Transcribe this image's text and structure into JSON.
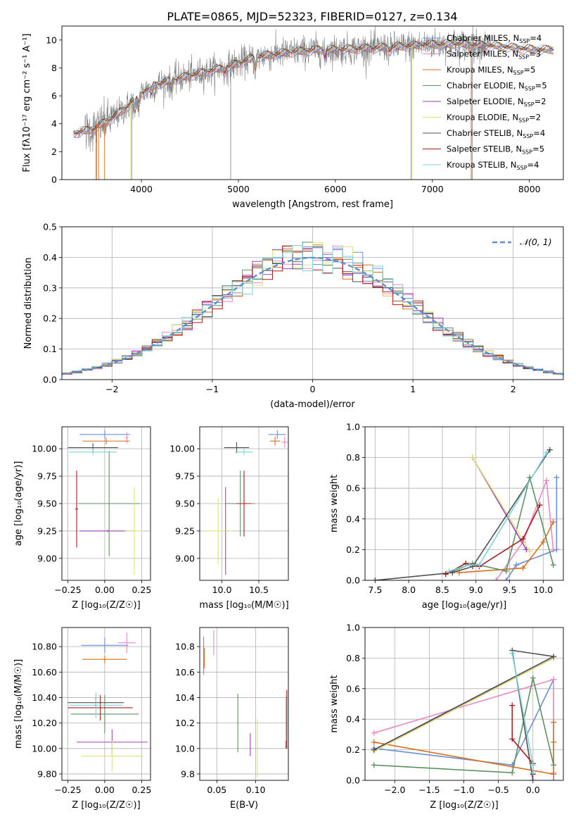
{
  "figure": {
    "title": "PLATE=0865, MJD=52323, FIBERID=0127, z=0.134"
  },
  "colors": {
    "Chabrier MILES": "#6b8fd6",
    "Salpeter MILES": "#e889c4",
    "Kroupa MILES": "#d86f1d",
    "Chabrier ELODIE": "#5e9162",
    "Salpeter ELODIE": "#9e3fbd",
    "Kroupa ELODIE": "#dbe37a",
    "Chabrier STELIB": "#505050",
    "Salpeter STELIB": "#a91d1d",
    "Kroupa STELIB": "#7fd3da",
    "data": "#808080"
  },
  "chart_data": [
    {
      "id": "spectrum",
      "type": "line",
      "title": "PLATE=0865, MJD=52323, FIBERID=0127, z=0.134",
      "xlabel": "wavelength [Angstrom, rest frame]",
      "ylabel": "Flux [fλ10⁻¹⁷ erg cm⁻² s⁻¹ A⁻¹]",
      "xlim": [
        3180,
        8350
      ],
      "ylim": [
        0,
        11
      ],
      "xticks": [
        4000,
        5000,
        6000,
        7000,
        8000
      ],
      "yticks": [
        0,
        2,
        4,
        6,
        8,
        10
      ],
      "grid": false,
      "legend": "upper-right",
      "legend_entries": [
        {
          "label": "Chabrier MILES, N",
          "sub": "SSP",
          "tail": "=4"
        },
        {
          "label": "Salpeter MILES, N",
          "sub": "SSP",
          "tail": "=3"
        },
        {
          "label": "Kroupa MILES, N",
          "sub": "SSP",
          "tail": "=5"
        },
        {
          "label": "Chabrier ELODIE, N",
          "sub": "SSP",
          "tail": "=5"
        },
        {
          "label": "Salpeter ELODIE, N",
          "sub": "SSP",
          "tail": "=2"
        },
        {
          "label": "Kroupa ELODIE, N",
          "sub": "SSP",
          "tail": "=2"
        },
        {
          "label": "Chabrier STELIB, N",
          "sub": "SSP",
          "tail": "=4"
        },
        {
          "label": "Salpeter STELIB, N",
          "sub": "SSP",
          "tail": "=5"
        },
        {
          "label": "Kroupa STELIB, N",
          "sub": "SSP",
          "tail": "=4"
        }
      ],
      "model_continuum": {
        "x": [
          3300,
          3500,
          3700,
          3850,
          4000,
          4150,
          4300,
          4600,
          4900,
          5200,
          5500,
          5800,
          6000,
          6300,
          6600,
          7000,
          7300,
          7600,
          7900,
          8100,
          8250
        ],
        "y": [
          3.3,
          3.6,
          4.4,
          5.2,
          6.2,
          6.8,
          7.1,
          7.6,
          8.1,
          8.8,
          9.1,
          9.3,
          9.3,
          9.4,
          9.5,
          9.7,
          9.7,
          9.6,
          9.4,
          9.3,
          9.3
        ]
      }
    },
    {
      "id": "residuals",
      "type": "step",
      "xlabel": "(data-model)/error",
      "ylabel": "Normed distribution",
      "xlim": [
        -2.5,
        2.5
      ],
      "ylim": [
        0,
        0.5
      ],
      "xticks": [
        -2,
        -1,
        0,
        1,
        2
      ],
      "yticks": [
        0.0,
        0.1,
        0.2,
        0.3,
        0.4,
        0.5
      ],
      "grid": true,
      "legend": "upper-right",
      "reference_label": "𝒩(0, 1)"
    },
    {
      "id": "age-vs-Z",
      "type": "errorbar",
      "xlabel": "Z [log₁₀(Z/Z☉)]",
      "ylabel": "age  [log₁₀(age/yr)]",
      "xlim": [
        -0.29,
        0.31
      ],
      "ylim": [
        8.8,
        10.2
      ],
      "xticks": [
        -0.25,
        0.0,
        0.25
      ],
      "yticks": [
        9.0,
        9.25,
        9.5,
        9.75,
        10.0
      ],
      "grid": true,
      "points": [
        {
          "model": "Chabrier MILES",
          "x": 0.0,
          "y": 10.13,
          "xerr": 0.17,
          "yerr": 0.04
        },
        {
          "model": "Salpeter MILES",
          "x": 0.15,
          "y": 10.1,
          "xerr": 0.01,
          "yerr": 0.05
        },
        {
          "model": "Kroupa MILES",
          "x": 0.01,
          "y": 10.07,
          "xerr": 0.16,
          "yerr": 0.03
        },
        {
          "model": "Chabrier ELODIE",
          "x": 0.03,
          "y": 9.5,
          "xerr": 0.21,
          "yerr": 0.48
        },
        {
          "model": "Salpeter ELODIE",
          "x": 0.02,
          "y": 9.25,
          "xerr": 0.19,
          "yerr": 0.01
        },
        {
          "model": "Kroupa ELODIE",
          "x": 0.2,
          "y": 9.25,
          "xerr": 0.06,
          "yerr": 0.4
        },
        {
          "model": "Chabrier STELIB",
          "x": -0.08,
          "y": 10.01,
          "xerr": 0.17,
          "yerr": 0.04
        },
        {
          "model": "Salpeter STELIB",
          "x": -0.19,
          "y": 9.45,
          "xerr": 0.01,
          "yerr": 0.35
        },
        {
          "model": "Kroupa STELIB",
          "x": -0.08,
          "y": 9.97,
          "xerr": 0.16,
          "yerr": 0.03
        }
      ]
    },
    {
      "id": "age-vs-mass",
      "type": "errorbar",
      "xlabel": "mass [log₁₀(M/M☉)]",
      "ylabel": "",
      "xlim": [
        9.7,
        10.9
      ],
      "ylim": [
        8.8,
        10.2
      ],
      "xticks": [
        10.0,
        10.5
      ],
      "yticks": [
        9.0,
        9.25,
        9.5,
        9.75,
        10.0
      ],
      "grid": true,
      "points": [
        {
          "model": "Chabrier MILES",
          "x": 10.75,
          "y": 10.13,
          "xerr": 0.12,
          "yerr": 0.04
        },
        {
          "model": "Salpeter MILES",
          "x": 10.85,
          "y": 10.06,
          "xerr": 0.04,
          "yerr": 0.05
        },
        {
          "model": "Kroupa MILES",
          "x": 10.72,
          "y": 10.07,
          "xerr": 0.07,
          "yerr": 0.04
        },
        {
          "model": "Chabrier ELODIE",
          "x": 10.25,
          "y": 9.5,
          "xerr": 0.2,
          "yerr": 0.3
        },
        {
          "model": "Salpeter ELODIE",
          "x": 10.05,
          "y": 9.25,
          "xerr": 0.05,
          "yerr": 0.4
        },
        {
          "model": "Kroupa ELODIE",
          "x": 9.95,
          "y": 9.25,
          "xerr": 0.2,
          "yerr": 0.3
        },
        {
          "model": "Chabrier STELIB",
          "x": 10.2,
          "y": 10.01,
          "xerr": 0.17,
          "yerr": 0.05
        },
        {
          "model": "Salpeter STELIB",
          "x": 10.3,
          "y": 9.5,
          "xerr": 0.1,
          "yerr": 0.3
        },
        {
          "model": "Kroupa STELIB",
          "x": 10.3,
          "y": 9.97,
          "xerr": 0.12,
          "yerr": 0.03
        }
      ]
    },
    {
      "id": "weight-vs-age",
      "type": "line",
      "xlabel": "age  [log₁₀(age/yr)]",
      "ylabel": "mass weight",
      "xlim": [
        7.35,
        10.3
      ],
      "ylim": [
        0,
        1.0
      ],
      "xticks": [
        7.5,
        8.0,
        8.5,
        9.0,
        9.5,
        10.0
      ],
      "yticks": [
        0.0,
        0.2,
        0.4,
        0.6,
        0.8,
        1.0
      ],
      "grid": true,
      "series": [
        {
          "model": "Chabrier MILES",
          "x": [
            9.45,
            9.6,
            10.2,
            10.2
          ],
          "y": [
            0.0,
            0.1,
            0.2,
            0.67
          ]
        },
        {
          "model": "Salpeter MILES",
          "x": [
            9.3,
            9.7,
            10.05,
            10.15
          ],
          "y": [
            0.0,
            0.25,
            0.65,
            0.2
          ]
        },
        {
          "model": "Kroupa MILES",
          "x": [
            8.75,
            9.7,
            10.0,
            10.15
          ],
          "y": [
            0.05,
            0.08,
            0.25,
            0.38
          ]
        },
        {
          "model": "Chabrier ELODIE",
          "x": [
            8.55,
            8.95,
            9.45,
            9.8,
            10.15
          ],
          "y": [
            0.04,
            0.11,
            0.06,
            0.67,
            0.1
          ]
        },
        {
          "model": "Salpeter ELODIE",
          "x": [
            8.95,
            9.75
          ],
          "y": [
            0.8,
            0.2
          ]
        },
        {
          "model": "Kroupa ELODIE",
          "x": [
            8.95,
            9.8
          ],
          "y": [
            0.8,
            0.19
          ]
        },
        {
          "model": "Chabrier STELIB",
          "x": [
            7.5,
            8.65,
            8.95,
            10.1
          ],
          "y": [
            0.0,
            0.05,
            0.09,
            0.85
          ]
        },
        {
          "model": "Salpeter STELIB",
          "x": [
            8.55,
            8.85,
            9.05,
            9.7,
            9.95
          ],
          "y": [
            0.04,
            0.11,
            0.09,
            0.27,
            0.49
          ]
        },
        {
          "model": "Kroupa STELIB",
          "x": [
            8.6,
            8.9,
            9.05,
            10.05
          ],
          "y": [
            0.06,
            0.1,
            0.1,
            0.83
          ]
        }
      ]
    },
    {
      "id": "mass-vs-Z",
      "type": "errorbar",
      "xlabel": "Z [log₁₀(Z/Z☉)]",
      "ylabel": "mass [log₁₀(M/M☉)]",
      "xlim": [
        -0.29,
        0.31
      ],
      "ylim": [
        9.75,
        10.95
      ],
      "xticks": [
        -0.25,
        0.0,
        0.25
      ],
      "yticks": [
        9.8,
        10.0,
        10.2,
        10.4,
        10.6,
        10.8
      ],
      "grid": true,
      "points": [
        {
          "model": "Chabrier MILES",
          "x": 0.0,
          "y": 10.81,
          "xerr": 0.16,
          "yerr": 0.06
        },
        {
          "model": "Salpeter MILES",
          "x": 0.15,
          "y": 10.83,
          "xerr": 0.06,
          "yerr": 0.08
        },
        {
          "model": "Kroupa MILES",
          "x": 0.0,
          "y": 10.7,
          "xerr": 0.15,
          "yerr": 0.03
        },
        {
          "model": "Chabrier ELODIE",
          "x": 0.0,
          "y": 10.27,
          "xerr": 0.23,
          "yerr": 0.15
        },
        {
          "model": "Salpeter ELODIE",
          "x": 0.05,
          "y": 10.05,
          "xerr": 0.24,
          "yerr": 0.1
        },
        {
          "model": "Kroupa ELODIE",
          "x": 0.05,
          "y": 9.94,
          "xerr": 0.21,
          "yerr": 0.12
        },
        {
          "model": "Chabrier STELIB",
          "x": -0.06,
          "y": 10.36,
          "xerr": 0.19,
          "yerr": 0.04
        },
        {
          "model": "Salpeter STELIB",
          "x": -0.03,
          "y": 10.32,
          "xerr": 0.22,
          "yerr": 0.1
        },
        {
          "model": "Kroupa STELIB",
          "x": -0.06,
          "y": 10.34,
          "xerr": 0.18,
          "yerr": 0.1
        }
      ]
    },
    {
      "id": "mass-vs-ebv",
      "type": "errorbar",
      "xlabel": "E(B-V)",
      "ylabel": "",
      "xlim": [
        0.028,
        0.142
      ],
      "ylim": [
        9.75,
        10.95
      ],
      "xticks": [
        0.05,
        0.1
      ],
      "yticks": [
        9.8,
        10.0,
        10.2,
        10.4,
        10.6,
        10.8
      ],
      "grid": true,
      "points": [
        {
          "model": "Chabrier MILES",
          "x": 0.033,
          "y": 10.73,
          "xerr": 0.0,
          "yerr": 0.15
        },
        {
          "model": "Salpeter MILES",
          "x": 0.046,
          "y": 10.83,
          "xerr": 0.0,
          "yerr": 0.1
        },
        {
          "model": "Kroupa MILES",
          "x": 0.034,
          "y": 10.71,
          "xerr": 0.0,
          "yerr": 0.08
        },
        {
          "model": "Chabrier ELODIE",
          "x": 0.077,
          "y": 10.2,
          "xerr": 0.0,
          "yerr": 0.23
        },
        {
          "model": "Salpeter ELODIE",
          "x": 0.093,
          "y": 10.03,
          "xerr": 0.0,
          "yerr": 0.09
        },
        {
          "model": "Kroupa ELODIE",
          "x": 0.102,
          "y": 10.0,
          "xerr": 0.0,
          "yerr": 0.23
        },
        {
          "model": "Chabrier STELIB",
          "x": 0.139,
          "y": 10.2,
          "xerr": 0.0,
          "yerr": 0.2
        },
        {
          "model": "Salpeter STELIB",
          "x": 0.14,
          "y": 10.23,
          "xerr": 0.0,
          "yerr": 0.23
        },
        {
          "model": "Kroupa STELIB",
          "x": 0.139,
          "y": 10.24,
          "xerr": 0.0,
          "yerr": 0.18
        }
      ]
    },
    {
      "id": "weight-vs-Z",
      "type": "line",
      "xlabel": "Z [log₁₀(Z/Z☉)]",
      "ylabel": "mass weight",
      "xlim": [
        -2.43,
        0.44
      ],
      "ylim": [
        0,
        1.0
      ],
      "xticks": [
        -2.0,
        -1.5,
        -1.0,
        -0.5,
        0.0
      ],
      "yticks": [
        0.0,
        0.2,
        0.4,
        0.6,
        0.8,
        1.0
      ],
      "grid": true,
      "series": [
        {
          "model": "Chabrier MILES",
          "x": [
            -2.3,
            -0.3,
            0.3,
            0.3
          ],
          "y": [
            0.21,
            0.1,
            0.66,
            0.0
          ]
        },
        {
          "model": "Salpeter MILES",
          "x": [
            -2.3,
            0.3,
            0.3
          ],
          "y": [
            0.31,
            0.66,
            0.05
          ]
        },
        {
          "model": "Kroupa MILES",
          "x": [
            -2.3,
            0.3,
            0.3,
            0.3
          ],
          "y": [
            0.25,
            0.04,
            0.38,
            0.25
          ]
        },
        {
          "model": "Chabrier ELODIE",
          "x": [
            -2.3,
            -0.3,
            0.0,
            0.3
          ],
          "y": [
            0.1,
            0.05,
            0.67,
            0.1
          ]
        },
        {
          "model": "Salpeter ELODIE",
          "x": [
            -2.3,
            0.3
          ],
          "y": [
            0.2,
            0.8
          ]
        },
        {
          "model": "Kroupa ELODIE",
          "x": [
            -2.3,
            0.3
          ],
          "y": [
            0.19,
            0.8
          ]
        },
        {
          "model": "Chabrier STELIB",
          "x": [
            -2.3,
            0.3,
            -0.3,
            0.0
          ],
          "y": [
            0.2,
            0.81,
            0.85,
            0.0
          ]
        },
        {
          "model": "Salpeter STELIB",
          "x": [
            -0.3,
            -0.3,
            0.0,
            0.0
          ],
          "y": [
            0.49,
            0.27,
            0.11,
            0.04
          ]
        },
        {
          "model": "Kroupa STELIB",
          "x": [
            -0.3,
            0.0,
            0.0
          ],
          "y": [
            0.83,
            0.1,
            0.05
          ]
        }
      ]
    }
  ]
}
